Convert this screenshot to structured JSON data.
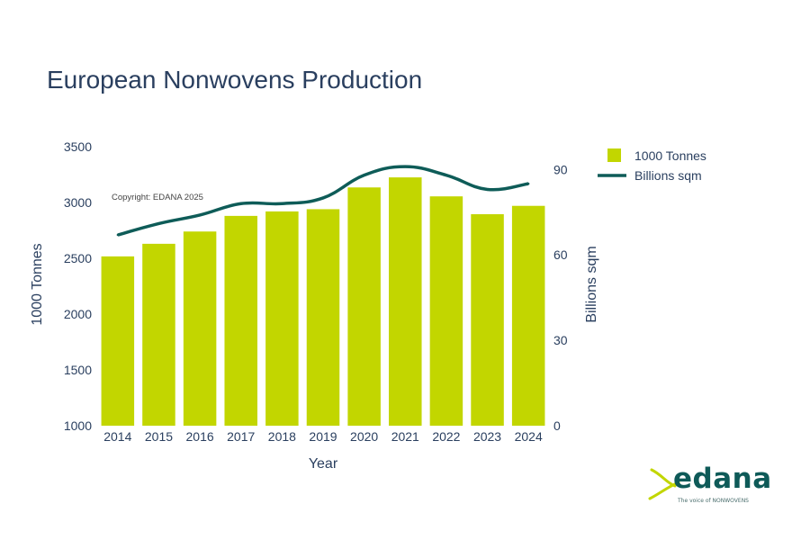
{
  "chart_data": {
    "type": "bar",
    "title": "European Nonwovens Production",
    "xlabel": "Year",
    "ylabel": "1000 Tonnes",
    "y2label": "Billions sqm",
    "categories": [
      "2014",
      "2015",
      "2016",
      "2017",
      "2018",
      "2019",
      "2020",
      "2021",
      "2022",
      "2023",
      "2024"
    ],
    "ylim": [
      1000,
      3500
    ],
    "yticks": [
      1000,
      1500,
      2000,
      2500,
      3000,
      3500
    ],
    "y2lim": [
      0,
      98
    ],
    "y2ticks": [
      0,
      30,
      60,
      90
    ],
    "series": [
      {
        "name": "1000 Tonnes",
        "type": "bar",
        "axis": "y",
        "values": [
          2517,
          2630,
          2740,
          2880,
          2920,
          2940,
          3135,
          3225,
          3055,
          2895,
          2970
        ]
      },
      {
        "name": "Billions sqm",
        "type": "line",
        "axis": "y2",
        "smooth": true,
        "values": [
          67,
          71,
          74,
          78,
          78,
          80,
          88,
          91,
          88,
          83,
          85
        ]
      }
    ],
    "legend": "top-right",
    "annotation": "Copyright: EDANA 2025",
    "colors": {
      "bar": "#c2d600",
      "line": "#0e5c58",
      "text": "#2a3f5f",
      "title": "#2a3f5f"
    }
  },
  "logo": {
    "word": "edana",
    "tagline": "The voice of NONWOVENS",
    "color": "#0e5a58",
    "accent": "#c2d600"
  }
}
